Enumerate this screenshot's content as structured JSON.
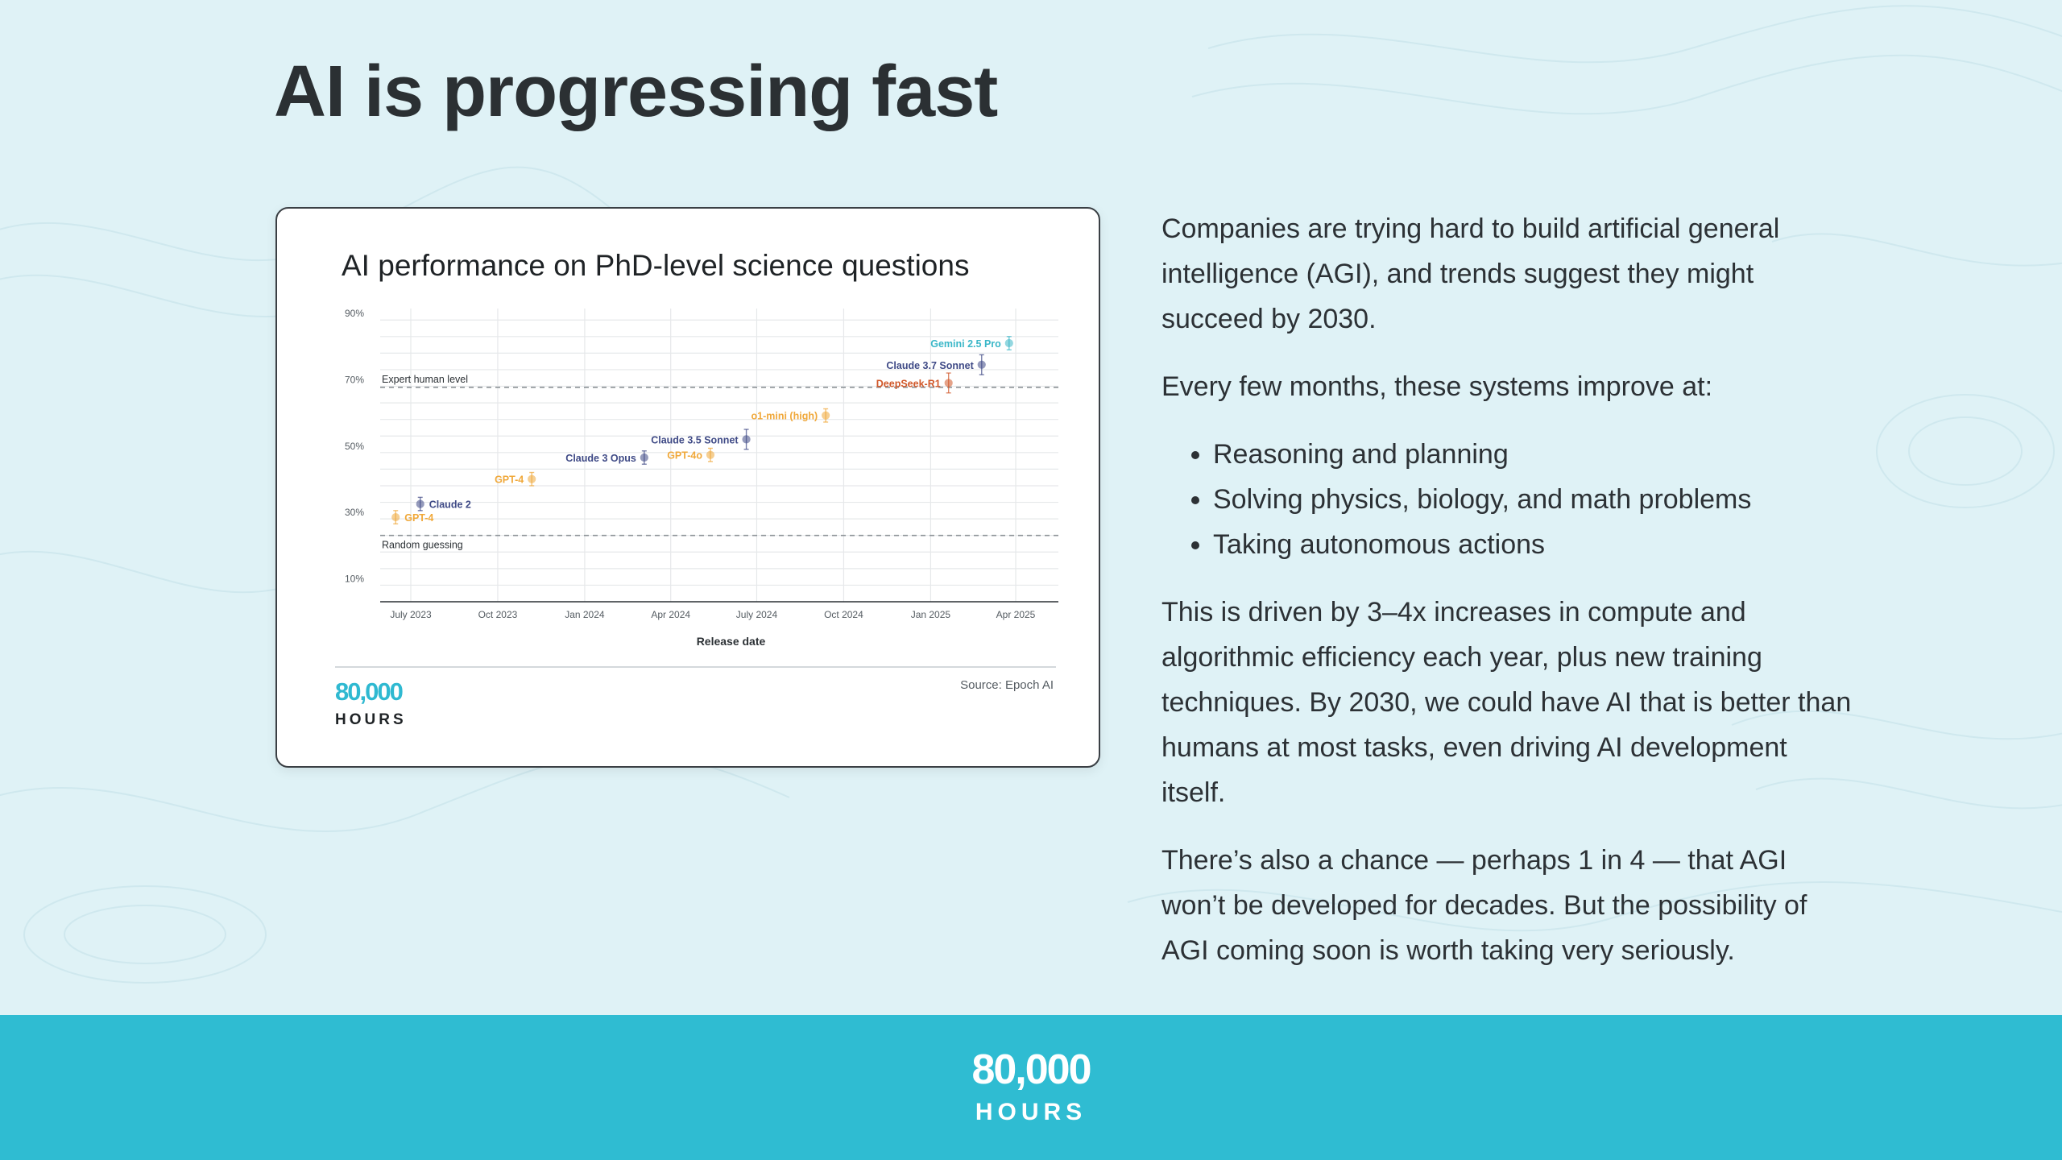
{
  "slide": {
    "title": "AI is progressing fast"
  },
  "chart_data": {
    "type": "scatter",
    "title": "AI performance on PhD-level science questions",
    "xlabel": "Release date",
    "ylabel": "",
    "x_ticks": [
      "July 2023",
      "Oct 2023",
      "Jan 2024",
      "Apr 2024",
      "July 2024",
      "Oct 2024",
      "Jan 2025",
      "Apr 2025"
    ],
    "y_ticks": [
      "10%",
      "30%",
      "50%",
      "70%",
      "90%"
    ],
    "ylim": [
      5,
      92
    ],
    "reference_lines": [
      {
        "label": "Expert human level",
        "value": 69.7
      },
      {
        "label": "Random guessing",
        "value": 25
      }
    ],
    "points": [
      {
        "label": "GPT-4",
        "date": "2023-06-15",
        "value": 30.5,
        "err": 2,
        "color": "#f0a83a"
      },
      {
        "label": "Claude 2",
        "date": "2023-07-11",
        "value": 34.5,
        "err": 2,
        "color": "#3f4a86"
      },
      {
        "label": "GPT-4",
        "date": "2023-11-06",
        "value": 42,
        "err": 2,
        "color": "#f0a83a"
      },
      {
        "label": "Claude 3 Opus",
        "date": "2024-03-04",
        "value": 48.5,
        "err": 2,
        "color": "#3f4a86"
      },
      {
        "label": "GPT-4o",
        "date": "2024-05-13",
        "value": 49.3,
        "err": 2,
        "color": "#f0a83a"
      },
      {
        "label": "Claude 3.5 Sonnet",
        "date": "2024-06-20",
        "value": 54,
        "err": 3,
        "color": "#3f4a86"
      },
      {
        "label": "o1-mini (high)",
        "date": "2024-09-12",
        "value": 61.2,
        "err": 2,
        "color": "#f0a83a"
      },
      {
        "label": "DeepSeek-R1",
        "date": "2025-01-20",
        "value": 71,
        "err": 3,
        "color": "#d1582a"
      },
      {
        "label": "Claude 3.7 Sonnet",
        "date": "2025-02-24",
        "value": 76.5,
        "err": 3,
        "color": "#3f4a86"
      },
      {
        "label": "Gemini 2.5 Pro",
        "date": "2025-03-25",
        "value": 83,
        "err": 2,
        "color": "#3bb7c8"
      }
    ],
    "source": "Source: Epoch AI"
  },
  "card_logo": {
    "number": "80,000",
    "word": "HOURS"
  },
  "body": {
    "para1": "Companies are trying hard to build artificial general intelligence (AGI), and trends suggest they might succeed by 2030.",
    "para2": "Every few months, these systems improve at:",
    "bullets": [
      "Reasoning and planning",
      "Solving physics, biology, and math problems",
      "Taking autonomous actions"
    ],
    "para3": "This is driven by 3–4x increases in compute and algorithmic efficiency each year, plus new training techniques. By 2030, we could have AI that is better than humans at most tasks, even driving AI development itself.",
    "para4": "There’s also a chance — perhaps 1 in 4 — that AGI won’t be developed for decades. But the possibility of AGI coming soon is worth taking very seriously."
  },
  "footer": {
    "number": "80,000",
    "word": "HOURS"
  }
}
